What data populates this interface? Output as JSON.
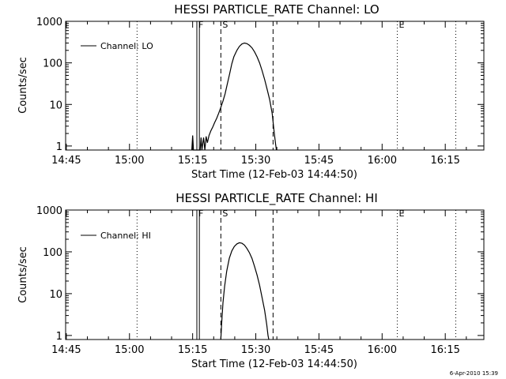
{
  "footer": {
    "timestamp": "6-Apr-2010 15:39"
  },
  "chart_data": [
    {
      "type": "line",
      "title": "HESSI PARTICLE_RATE Channel: LO",
      "xlabel": "Start Time (12-Feb-03 14:44:50)",
      "ylabel": "Counts/sec",
      "yscale": "log",
      "ylim": [
        0.8,
        1000
      ],
      "xlim_minutes": [
        -0.167,
        99.167
      ],
      "xticks": [
        {
          "t": 0,
          "label": "14:45"
        },
        {
          "t": 15,
          "label": "15:00"
        },
        {
          "t": 30,
          "label": "15:15"
        },
        {
          "t": 45,
          "label": "15:30"
        },
        {
          "t": 60,
          "label": "15:45"
        },
        {
          "t": 75,
          "label": "16:00"
        },
        {
          "t": 90,
          "label": "16:15"
        }
      ],
      "yticks": [
        {
          "v": 1,
          "label": "1"
        },
        {
          "v": 10,
          "label": "10"
        },
        {
          "v": 100,
          "label": "100"
        },
        {
          "v": 1000,
          "label": "1000"
        }
      ],
      "legend": {
        "label": "Channel: LO",
        "position": "top-left"
      },
      "markers": [
        {
          "t": 31.0,
          "label": "F",
          "style": "solid"
        },
        {
          "t": 31.6,
          "label": "",
          "style": "solid"
        },
        {
          "t": 36.7,
          "label": "S",
          "style": "dashed"
        },
        {
          "t": 49.1,
          "label": "",
          "style": "dashed"
        },
        {
          "t": 78.6,
          "label": "E",
          "style": "dotted"
        },
        {
          "t": 16.8,
          "label": "",
          "style": "dotted"
        },
        {
          "t": 92.5,
          "label": "",
          "style": "dotted"
        }
      ],
      "series": [
        {
          "name": "Channel: LO",
          "points": [
            [
              29.8,
              0.8
            ],
            [
              30.0,
              1.8
            ],
            [
              30.2,
              0.8
            ],
            [
              31.8,
              0.8
            ],
            [
              32.0,
              1.6
            ],
            [
              32.2,
              0.8
            ],
            [
              32.6,
              1.6
            ],
            [
              32.9,
              0.8
            ],
            [
              33.2,
              1.7
            ],
            [
              33.5,
              1.2
            ],
            [
              33.9,
              1.8
            ],
            [
              34.3,
              2.3
            ],
            [
              34.8,
              2.9
            ],
            [
              35.2,
              3.6
            ],
            [
              35.7,
              4.6
            ],
            [
              36.2,
              6.2
            ],
            [
              36.7,
              8.5
            ],
            [
              37.2,
              12
            ],
            [
              37.7,
              18
            ],
            [
              38.2,
              30
            ],
            [
              38.8,
              55
            ],
            [
              39.3,
              95
            ],
            [
              39.8,
              140
            ],
            [
              40.5,
              200
            ],
            [
              41.1,
              250
            ],
            [
              41.7,
              285
            ],
            [
              42.3,
              300
            ],
            [
              42.9,
              290
            ],
            [
              43.5,
              265
            ],
            [
              44.1,
              230
            ],
            [
              44.7,
              185
            ],
            [
              45.3,
              140
            ],
            [
              45.9,
              100
            ],
            [
              46.5,
              65
            ],
            [
              47.1,
              40
            ],
            [
              47.7,
              23
            ],
            [
              48.3,
              13
            ],
            [
              48.9,
              6
            ],
            [
              49.3,
              2.5
            ],
            [
              49.7,
              1.1
            ],
            [
              49.9,
              0.8
            ]
          ]
        }
      ]
    },
    {
      "type": "line",
      "title": "HESSI PARTICLE_RATE Channel: HI",
      "xlabel": "Start Time (12-Feb-03 14:44:50)",
      "ylabel": "Counts/sec",
      "yscale": "log",
      "ylim": [
        0.8,
        1000
      ],
      "xlim_minutes": [
        -0.167,
        99.167
      ],
      "xticks": [
        {
          "t": 0,
          "label": "14:45"
        },
        {
          "t": 15,
          "label": "15:00"
        },
        {
          "t": 30,
          "label": "15:15"
        },
        {
          "t": 45,
          "label": "15:30"
        },
        {
          "t": 60,
          "label": "15:45"
        },
        {
          "t": 75,
          "label": "16:00"
        },
        {
          "t": 90,
          "label": "16:15"
        }
      ],
      "yticks": [
        {
          "v": 1,
          "label": "1"
        },
        {
          "v": 10,
          "label": "10"
        },
        {
          "v": 100,
          "label": "100"
        },
        {
          "v": 1000,
          "label": "1000"
        }
      ],
      "legend": {
        "label": "Channel: HI",
        "position": "top-left"
      },
      "markers": [
        {
          "t": 31.0,
          "label": "F",
          "style": "solid"
        },
        {
          "t": 31.6,
          "label": "",
          "style": "solid"
        },
        {
          "t": 36.7,
          "label": "S",
          "style": "dashed"
        },
        {
          "t": 49.1,
          "label": "",
          "style": "dashed"
        },
        {
          "t": 78.6,
          "label": "E",
          "style": "dotted"
        },
        {
          "t": 16.8,
          "label": "",
          "style": "dotted"
        },
        {
          "t": 92.5,
          "label": "",
          "style": "dotted"
        }
      ],
      "series": [
        {
          "name": "Channel: HI",
          "points": [
            [
              36.7,
              0.8
            ],
            [
              36.9,
              2
            ],
            [
              37.2,
              6
            ],
            [
              37.6,
              15
            ],
            [
              38.1,
              35
            ],
            [
              38.7,
              70
            ],
            [
              39.3,
              105
            ],
            [
              39.9,
              135
            ],
            [
              40.5,
              155
            ],
            [
              41.1,
              165
            ],
            [
              41.7,
              160
            ],
            [
              42.3,
              145
            ],
            [
              42.9,
              120
            ],
            [
              43.5,
              95
            ],
            [
              44.1,
              70
            ],
            [
              44.7,
              45
            ],
            [
              45.3,
              28
            ],
            [
              45.9,
              16
            ],
            [
              46.5,
              8
            ],
            [
              47.1,
              4
            ],
            [
              47.6,
              1.8
            ],
            [
              47.9,
              1.0
            ],
            [
              48.1,
              0.8
            ]
          ]
        }
      ]
    }
  ]
}
